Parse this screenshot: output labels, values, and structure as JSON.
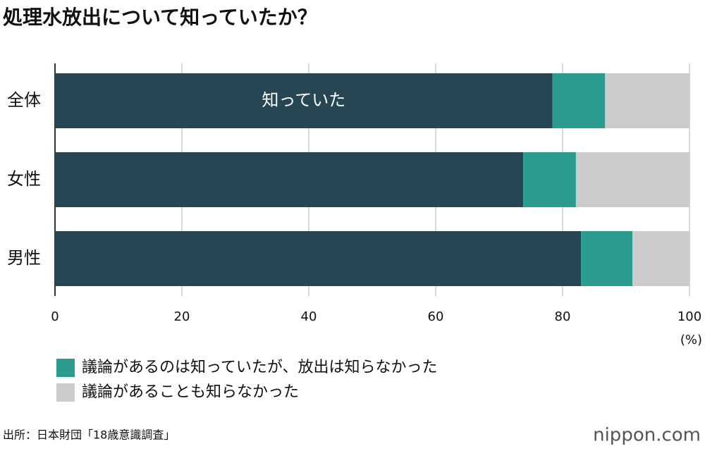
{
  "chart_data": {
    "type": "stacked_bar_horizontal",
    "title": "処理水放出について知っていたか？",
    "categories": [
      "全体",
      "女性",
      "男性"
    ],
    "series": [
      {
        "name": "知っていた",
        "color": "#264653",
        "values": [
          78.4,
          73.8,
          82.9
        ],
        "inside_label": true
      },
      {
        "name": "議論があるのは知っていたが、放出は知らなかった",
        "color": "#2a9d8f",
        "values": [
          8.3,
          8.3,
          8.1
        ]
      },
      {
        "name": "議論があることも知らなかった",
        "color": "#cccccc",
        "values": [
          13.3,
          17.9,
          9.0
        ]
      }
    ],
    "xlim": [
      0,
      100
    ],
    "xticks": [
      0,
      20,
      40,
      60,
      80,
      100
    ],
    "x_unit": "(%)",
    "grid": true,
    "source": "出所：日本財団「18歳意識調査」",
    "brand": "nippon.com"
  }
}
